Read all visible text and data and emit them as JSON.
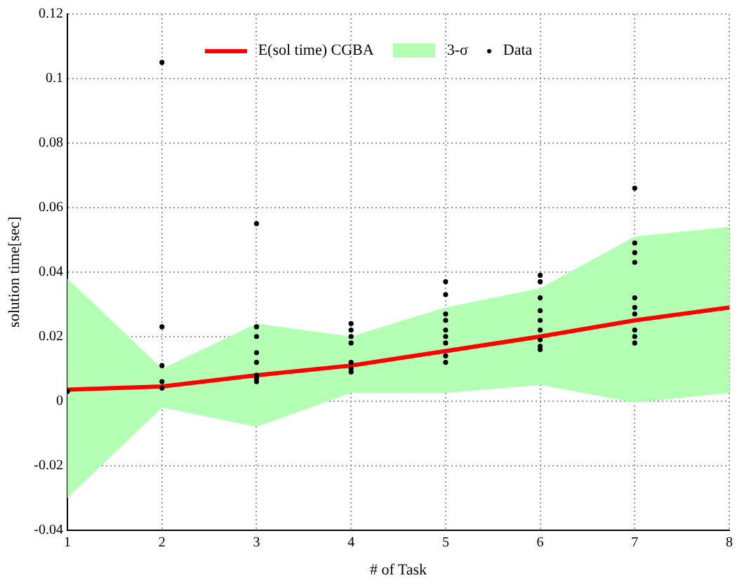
{
  "chart_data": {
    "type": "line",
    "xlabel": "# of Task",
    "ylabel": "solution time[sec]",
    "x": [
      1,
      2,
      3,
      4,
      5,
      6,
      7,
      8
    ],
    "xlim": [
      1,
      8
    ],
    "xticks": [
      1,
      2,
      3,
      4,
      5,
      6,
      7,
      8
    ],
    "ylim": [
      -0.04,
      0.12
    ],
    "yticks": [
      -0.04,
      -0.02,
      0,
      0.02,
      0.04,
      0.06,
      0.08,
      0.1,
      0.12
    ],
    "grid": true,
    "legend": "top",
    "annotations": [
      "3-σ"
    ],
    "series": [
      {
        "name": "E(sol time) CGBA",
        "type": "line",
        "color": "#ff0000",
        "values": [
          0.0035,
          0.0045,
          0.008,
          0.011,
          0.0155,
          0.02,
          0.025,
          0.029
        ],
        "lower": [
          -0.03,
          -0.002,
          -0.008,
          0.0025,
          0.0025,
          0.005,
          -0.0005,
          0.0025
        ],
        "upper": [
          0.038,
          0.01,
          0.024,
          0.02,
          0.029,
          0.035,
          0.051,
          0.054
        ]
      },
      {
        "name": "Data",
        "type": "scatter",
        "color": "#000000",
        "marker": "circle",
        "x": [
          1,
          2,
          2,
          2,
          2,
          2,
          3,
          3,
          3,
          3,
          3,
          3,
          3,
          3,
          4,
          4,
          4,
          4,
          4,
          4,
          4,
          5,
          5,
          5,
          5,
          5,
          5,
          5,
          5,
          5,
          6,
          6,
          6,
          6,
          6,
          6,
          6,
          6,
          6,
          7,
          7,
          7,
          7,
          7,
          7,
          7,
          7,
          7,
          7
        ],
        "values": [
          0.003,
          0.105,
          0.023,
          0.011,
          0.006,
          0.004,
          0.055,
          0.023,
          0.02,
          0.015,
          0.012,
          0.008,
          0.007,
          0.006,
          0.024,
          0.022,
          0.02,
          0.018,
          0.012,
          0.01,
          0.009,
          0.037,
          0.033,
          0.027,
          0.025,
          0.022,
          0.02,
          0.018,
          0.014,
          0.012,
          0.039,
          0.037,
          0.032,
          0.028,
          0.025,
          0.022,
          0.019,
          0.017,
          0.016,
          0.066,
          0.049,
          0.046,
          0.043,
          0.032,
          0.029,
          0.027,
          0.022,
          0.02,
          0.018
        ]
      }
    ]
  }
}
